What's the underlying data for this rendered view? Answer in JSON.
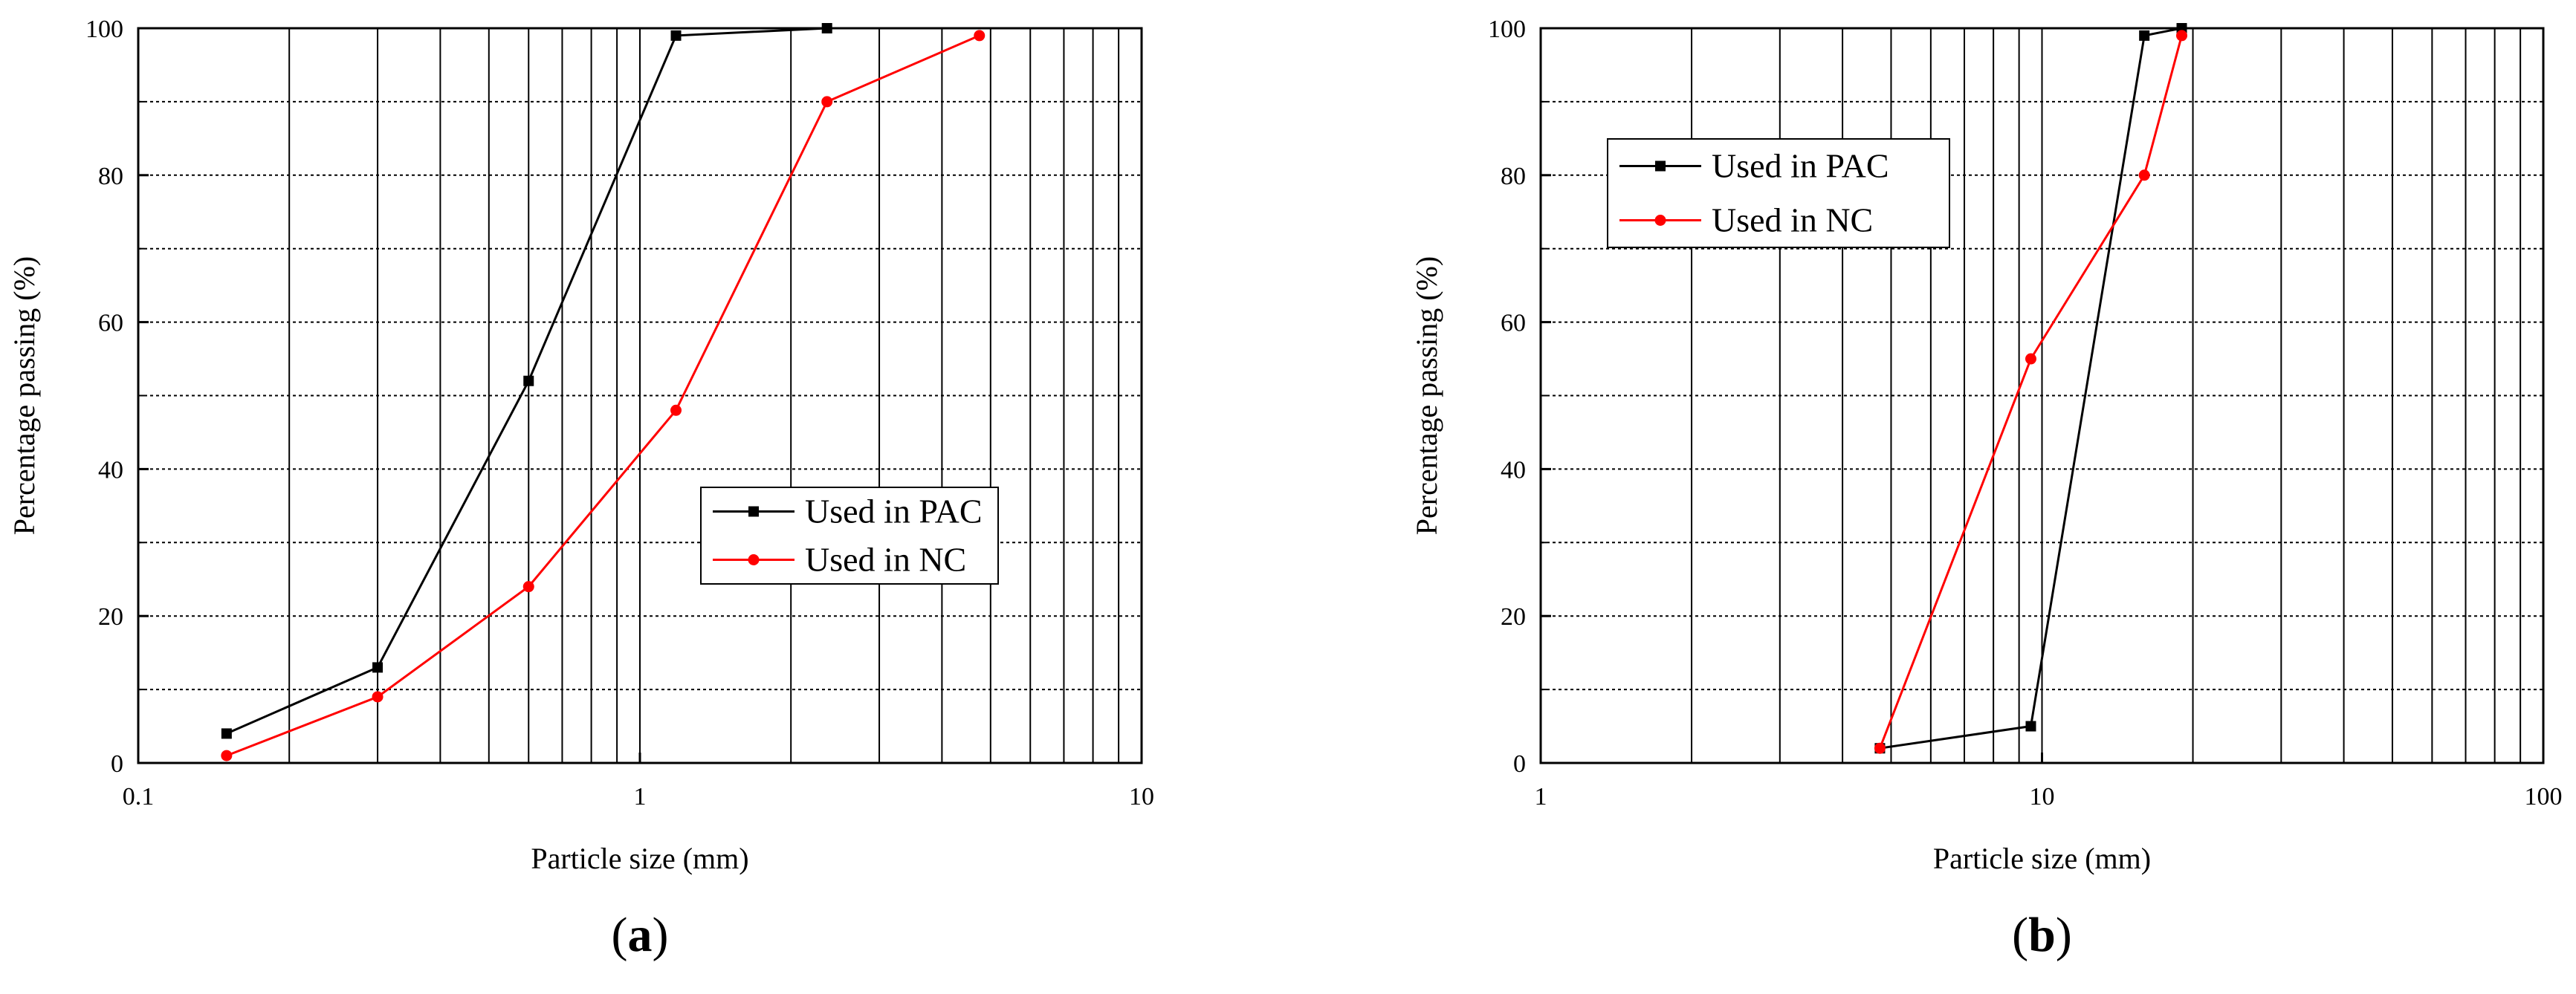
{
  "chart_data": [
    {
      "type": "line",
      "xlabel": "Particle size (mm)",
      "ylabel": "Percentage passing (%)",
      "xscale": "log",
      "xlim": [
        0.1,
        10
      ],
      "ylim": [
        0,
        100
      ],
      "x_ticks": [
        "0.1",
        "1",
        "10"
      ],
      "y_ticks": [
        "0",
        "20",
        "40",
        "60",
        "80",
        "100"
      ],
      "grid": true,
      "legend_position": "center-right",
      "panel_label": {
        "open": "(",
        "letter": "a",
        "close": ")"
      },
      "series": [
        {
          "name": "Used in PAC",
          "color": "#000000",
          "marker": "square",
          "x": [
            0.15,
            0.3,
            0.6,
            1.18,
            2.36
          ],
          "y": [
            4,
            13,
            52,
            99,
            100
          ]
        },
        {
          "name": "Used in NC",
          "color": "#ff0000",
          "marker": "circle",
          "x": [
            0.15,
            0.3,
            0.6,
            1.18,
            2.36,
            4.75
          ],
          "y": [
            1,
            9,
            24,
            48,
            90,
            99
          ]
        }
      ]
    },
    {
      "type": "line",
      "xlabel": "Particle size (mm)",
      "ylabel": "Percentage passing (%)",
      "xscale": "log",
      "xlim": [
        1,
        100
      ],
      "ylim": [
        0,
        100
      ],
      "x_ticks": [
        "1",
        "10",
        "100"
      ],
      "y_ticks": [
        "0",
        "20",
        "40",
        "60",
        "80",
        "100"
      ],
      "grid": true,
      "legend_position": "top-left",
      "panel_label": {
        "open": "(",
        "letter": "b",
        "close": ")"
      },
      "series": [
        {
          "name": "Used in PAC",
          "color": "#000000",
          "marker": "square",
          "x": [
            4.75,
            9.5,
            16,
            19
          ],
          "y": [
            2,
            5,
            99,
            100
          ]
        },
        {
          "name": "Used in NC",
          "color": "#ff0000",
          "marker": "circle",
          "x": [
            4.75,
            9.5,
            16,
            19
          ],
          "y": [
            2,
            55,
            80,
            99
          ]
        }
      ]
    }
  ]
}
